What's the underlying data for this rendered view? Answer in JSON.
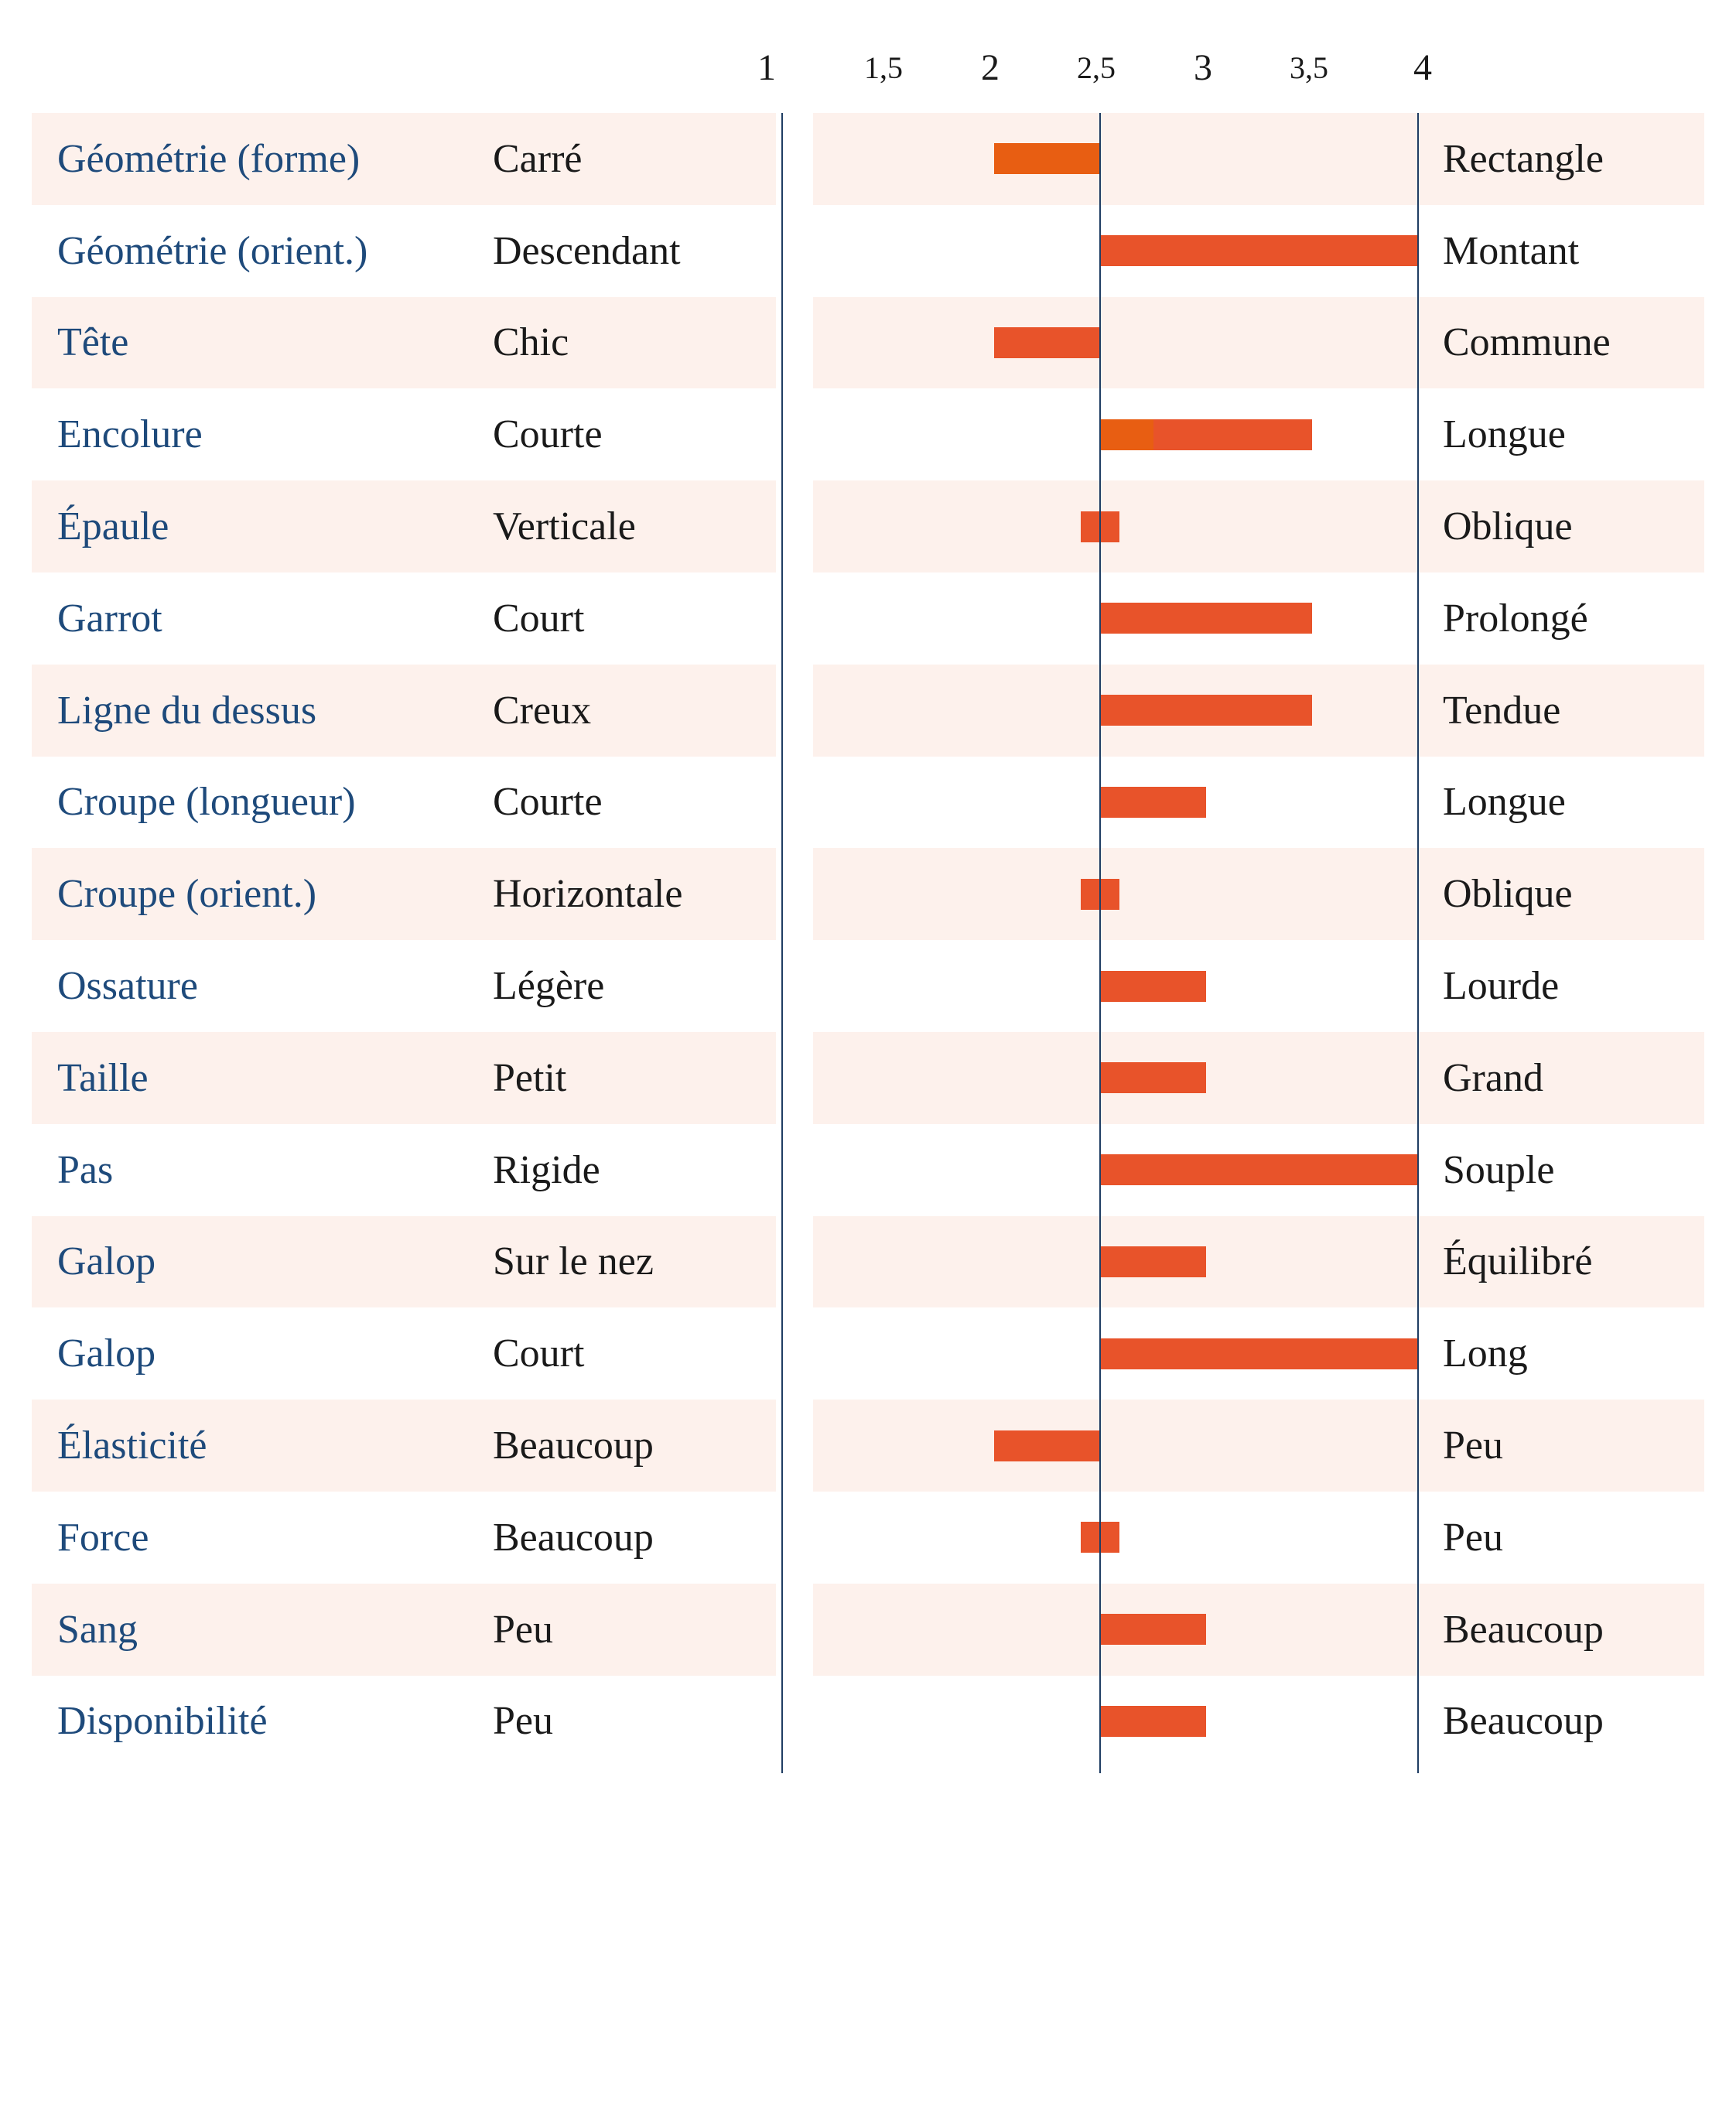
{
  "colors": {
    "bar": "#e8532a",
    "bar_accent": "#e85e12",
    "row_shade": "#fdf1ec",
    "category_text": "#1e4a7b",
    "axis_line": "#1f3d63"
  },
  "chart_data": {
    "type": "bar",
    "orientation": "horizontal",
    "baseline": 2.5,
    "xlim": [
      1,
      4
    ],
    "x_ticks": [
      "1",
      "1,5",
      "2",
      "2,5",
      "3",
      "3,5",
      "4"
    ],
    "x_tick_values": [
      1,
      1.5,
      2,
      2.5,
      3,
      3.5,
      4
    ],
    "grid": false,
    "categories": [
      "Géométrie (forme)",
      "Géométrie (orient.)",
      "Tête",
      "Encolure",
      "Épaule",
      "Garrot",
      "Ligne du dessus",
      "Croupe (longueur)",
      "Croupe (orient.)",
      "Ossature",
      "Taille",
      "Pas",
      "Galop",
      "Galop",
      "Élasticité",
      "Force",
      "Sang",
      "Disponibilité"
    ],
    "low_labels": [
      "Carré",
      "Descendant",
      "Chic",
      "Courte",
      "Verticale",
      "Court",
      "Creux",
      "Courte",
      "Horizontale",
      "Légère",
      "Petit",
      "Rigide",
      "Sur le nez",
      "Court",
      "Beaucoup",
      "Beaucoup",
      "Peu",
      "Peu"
    ],
    "high_labels": [
      "Rectangle",
      "Montant",
      "Commune",
      "Longue",
      "Oblique",
      "Prolongé",
      "Tendue",
      "Longue",
      "Oblique",
      "Lourde",
      "Grand",
      "Souple",
      "Équilibré",
      "Long",
      "Peu",
      "Peu",
      "Beaucoup",
      "Beaucoup"
    ],
    "values": [
      2,
      4,
      2,
      3.5,
      2.5,
      3.5,
      3.5,
      3,
      2.5,
      3,
      3,
      4,
      3,
      4,
      2,
      2.5,
      3,
      3
    ]
  }
}
